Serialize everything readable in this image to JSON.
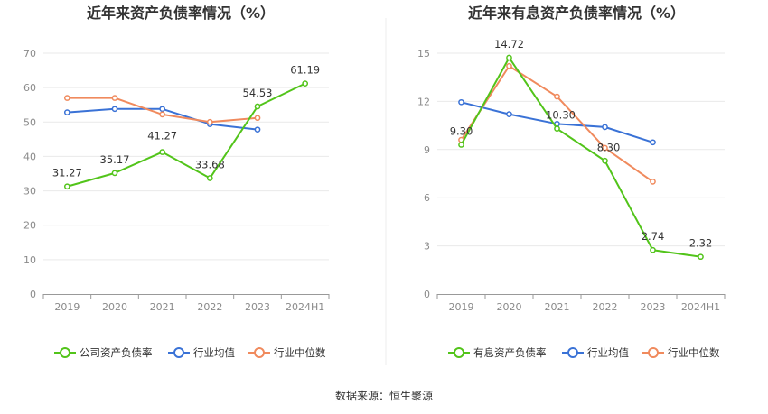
{
  "footer": {
    "source": "数据来源：恒生聚源"
  },
  "chart_data": [
    {
      "type": "line",
      "title": "近年来资产负债率情况（%）",
      "categories": [
        "2019",
        "2020",
        "2021",
        "2022",
        "2023",
        "2024H1"
      ],
      "ylim": [
        0,
        70
      ],
      "yticks": [
        0,
        10,
        20,
        30,
        40,
        50,
        60,
        70
      ],
      "grid": true,
      "legend_position": "bottom",
      "series": [
        {
          "name": "公司资产负债率",
          "color": "#52c41a",
          "values": [
            31.27,
            35.17,
            41.27,
            33.68,
            54.53,
            61.19
          ],
          "labels": [
            "31.27",
            "35.17",
            "41.27",
            "33.68",
            "54.53",
            "61.19"
          ]
        },
        {
          "name": "行业均值",
          "color": "#3a72d6",
          "values": [
            52.8,
            53.8,
            53.8,
            49.4,
            47.8,
            null
          ]
        },
        {
          "name": "行业中位数",
          "color": "#f08a5d",
          "values": [
            57.0,
            57.0,
            52.2,
            50.0,
            51.2,
            null
          ]
        }
      ]
    },
    {
      "type": "line",
      "title": "近年来有息资产负债率情况（%）",
      "categories": [
        "2019",
        "2020",
        "2021",
        "2022",
        "2023",
        "2024H1"
      ],
      "ylim": [
        0,
        15
      ],
      "yticks": [
        0,
        3,
        6,
        9,
        12,
        15
      ],
      "grid": true,
      "legend_position": "bottom",
      "series": [
        {
          "name": "有息资产负债率",
          "color": "#52c41a",
          "values": [
            9.3,
            14.72,
            10.3,
            8.3,
            2.74,
            2.32
          ],
          "labels": [
            "9.30",
            "14.72",
            "10.30",
            "8.30",
            "2.74",
            "2.32"
          ]
        },
        {
          "name": "行业均值",
          "color": "#3a72d6",
          "values": [
            11.95,
            11.2,
            10.6,
            10.4,
            9.45,
            null
          ]
        },
        {
          "name": "行业中位数",
          "color": "#f08a5d",
          "values": [
            9.6,
            14.2,
            12.3,
            9.1,
            7.0,
            null
          ]
        }
      ]
    }
  ]
}
